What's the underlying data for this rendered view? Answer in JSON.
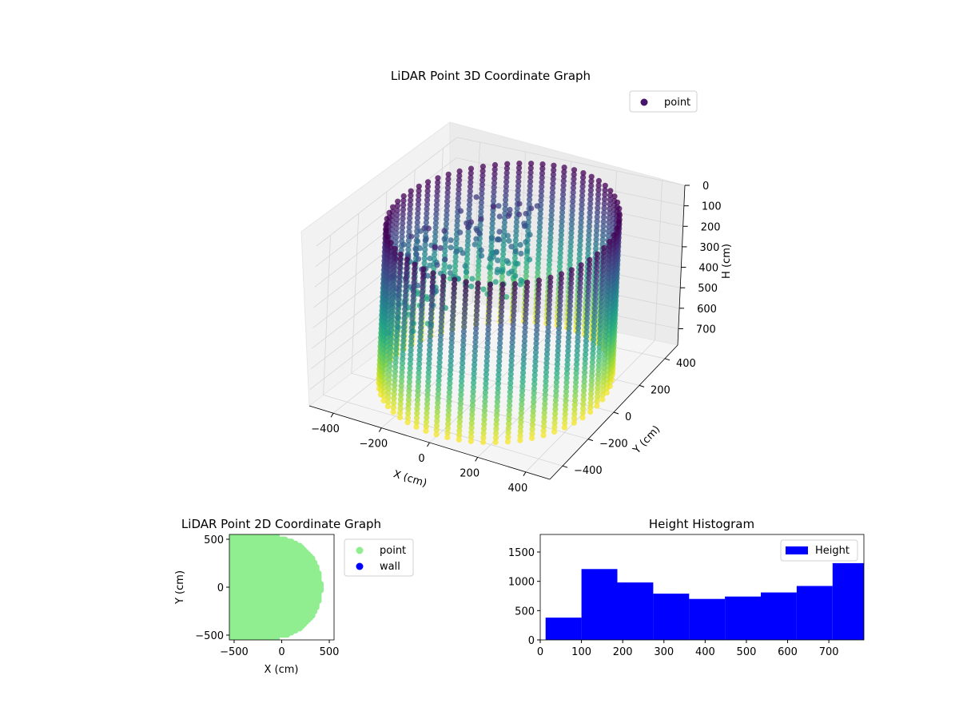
{
  "chart_data": [
    {
      "type": "scatter3d",
      "title": "LiDAR Point 3D Coordinate Graph",
      "xlabel": "X (cm)",
      "ylabel": "Y (cm)",
      "zlabel": "H (cm)",
      "x_ticks": [
        "−400",
        "−200",
        "0",
        "200",
        "400"
      ],
      "y_ticks": [
        "−400",
        "−200",
        "0",
        "200",
        "400"
      ],
      "z_ticks": [
        "0",
        "100",
        "200",
        "300",
        "400",
        "500",
        "600",
        "700"
      ],
      "xlim": [
        -500,
        500
      ],
      "ylim": [
        -500,
        500
      ],
      "zlim": [
        0,
        780
      ],
      "z_inverted": true,
      "colormap": "viridis",
      "grid": true,
      "legend": {
        "position": "top-right",
        "entries": [
          {
            "label": "point",
            "color": "#46166b"
          }
        ]
      },
      "shape": {
        "type": "cylindrical-room",
        "radius": 450,
        "height": 780,
        "columns": 60
      }
    },
    {
      "type": "scatter",
      "title": "LiDAR Point 2D Coordinate Graph",
      "xlabel": "X (cm)",
      "ylabel": "Y (cm)",
      "x_ticks": [
        "−500",
        "0",
        "500"
      ],
      "y_ticks": [
        "500",
        "0",
        "−500"
      ],
      "xlim": [
        -550,
        550
      ],
      "ylim": [
        -550,
        550
      ],
      "grid": false,
      "legend": {
        "position": "outside-right",
        "entries": [
          {
            "label": "point",
            "color": "#90ee90"
          },
          {
            "label": "wall",
            "color": "#0000ff"
          }
        ]
      }
    },
    {
      "type": "bar",
      "title": "Height Histogram",
      "xlabel": "",
      "ylabel": "",
      "x_ticks": [
        "0",
        "100",
        "200",
        "300",
        "400",
        "500",
        "600",
        "700"
      ],
      "y_ticks": [
        "0",
        "500",
        "1000",
        "1500"
      ],
      "xlim": [
        0,
        785
      ],
      "ylim": [
        0,
        1800
      ],
      "bins": [
        {
          "start": 13,
          "end": 100,
          "value": 380
        },
        {
          "start": 100,
          "end": 187,
          "value": 1210
        },
        {
          "start": 187,
          "end": 274,
          "value": 980
        },
        {
          "start": 274,
          "end": 361,
          "value": 790
        },
        {
          "start": 361,
          "end": 448,
          "value": 700
        },
        {
          "start": 448,
          "end": 535,
          "value": 740
        },
        {
          "start": 535,
          "end": 622,
          "value": 810
        },
        {
          "start": 622,
          "end": 709,
          "value": 920
        },
        {
          "start": 709,
          "end": 785,
          "value": 1310
        }
      ],
      "bar_color": "#0000ff",
      "grid": false,
      "legend": {
        "position": "top-right",
        "entries": [
          {
            "label": "Height",
            "color": "#0000ff"
          }
        ]
      }
    }
  ]
}
